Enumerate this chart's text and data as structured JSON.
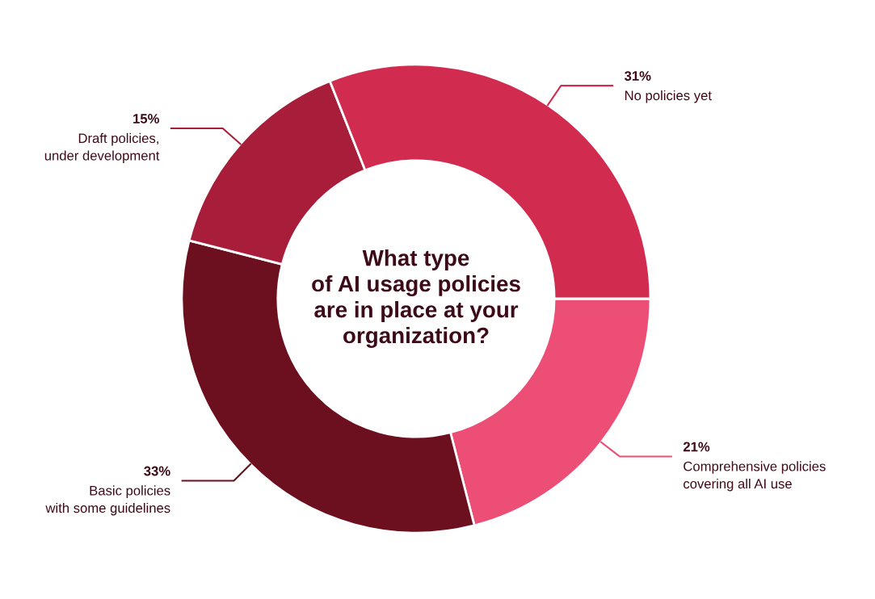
{
  "chart_data": {
    "type": "donut",
    "title": "What type\nof AI usage policies\nare in place at your\norganization?",
    "categories": [
      "Comprehensive policies\ncovering all AI use",
      "Basic policies\nwith some guidelines",
      "Draft policies,\nunder development",
      "No policies yet"
    ],
    "values": [
      21,
      33,
      15,
      31
    ],
    "value_labels": [
      "21%",
      "33%",
      "15%",
      "31%"
    ],
    "colors": [
      "#ec4e75",
      "#6c0f1f",
      "#a81e3a",
      "#d22b50"
    ]
  }
}
